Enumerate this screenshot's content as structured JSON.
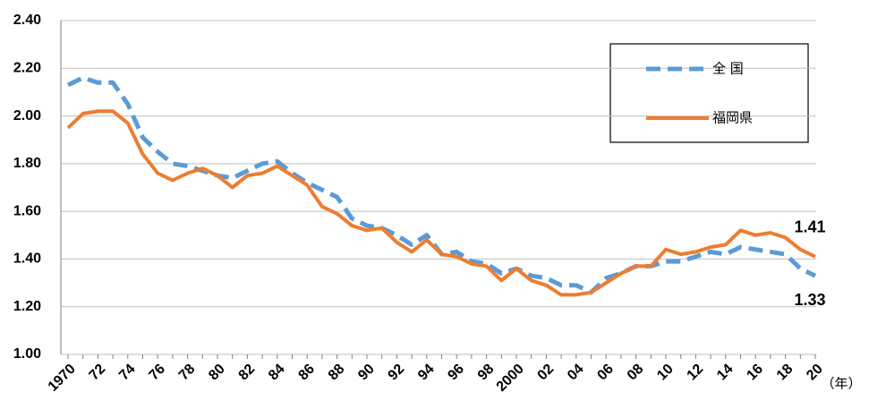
{
  "chart_data": {
    "type": "line",
    "x_label": "（年）",
    "categories": [
      "1970",
      null,
      "72",
      null,
      "74",
      null,
      "76",
      null,
      "78",
      null,
      "80",
      null,
      "82",
      null,
      "84",
      null,
      "86",
      null,
      "88",
      null,
      "90",
      null,
      "92",
      null,
      "94",
      null,
      "96",
      null,
      "98",
      null,
      "2000",
      null,
      "02",
      null,
      "04",
      null,
      "06",
      null,
      "08",
      null,
      "10",
      null,
      "12",
      null,
      "14",
      null,
      "16",
      null,
      "18",
      null,
      "20"
    ],
    "series": [
      {
        "name": "全 国",
        "color": "#5b9bd5",
        "line_style": "dashed",
        "values": [
          2.13,
          2.16,
          2.14,
          2.14,
          2.05,
          1.91,
          1.85,
          1.8,
          1.79,
          1.77,
          1.75,
          1.74,
          1.77,
          1.8,
          1.81,
          1.76,
          1.72,
          1.69,
          1.66,
          1.57,
          1.54,
          1.53,
          1.5,
          1.46,
          1.5,
          1.42,
          1.43,
          1.39,
          1.38,
          1.34,
          1.36,
          1.33,
          1.32,
          1.29,
          1.29,
          1.26,
          1.32,
          1.34,
          1.37,
          1.37,
          1.39,
          1.39,
          1.41,
          1.43,
          1.42,
          1.45,
          1.44,
          1.43,
          1.42,
          1.36,
          1.33
        ]
      },
      {
        "name": "福岡県",
        "color": "#ed7d31",
        "line_style": "solid",
        "values": [
          1.95,
          2.01,
          2.02,
          2.02,
          1.97,
          1.84,
          1.76,
          1.73,
          1.76,
          1.78,
          1.75,
          1.7,
          1.75,
          1.76,
          1.79,
          1.75,
          1.71,
          1.62,
          1.59,
          1.54,
          1.52,
          1.53,
          1.47,
          1.43,
          1.48,
          1.42,
          1.41,
          1.38,
          1.37,
          1.31,
          1.36,
          1.31,
          1.29,
          1.25,
          1.25,
          1.26,
          1.3,
          1.34,
          1.37,
          1.37,
          1.44,
          1.42,
          1.43,
          1.45,
          1.46,
          1.52,
          1.5,
          1.51,
          1.49,
          1.44,
          1.41
        ]
      }
    ],
    "ylim": [
      1.0,
      2.4
    ],
    "yticks": [
      {
        "value": 1.0,
        "label": "1.00"
      },
      {
        "value": 1.2,
        "label": "1.20"
      },
      {
        "value": 1.4,
        "label": "1.40"
      },
      {
        "value": 1.6,
        "label": "1.60"
      },
      {
        "value": 1.8,
        "label": "1.80"
      },
      {
        "value": 2.0,
        "label": "2.00"
      },
      {
        "value": 2.2,
        "label": "2.20"
      },
      {
        "value": 2.4,
        "label": "2.40"
      }
    ],
    "grid": true,
    "legend": "upper-right"
  }
}
